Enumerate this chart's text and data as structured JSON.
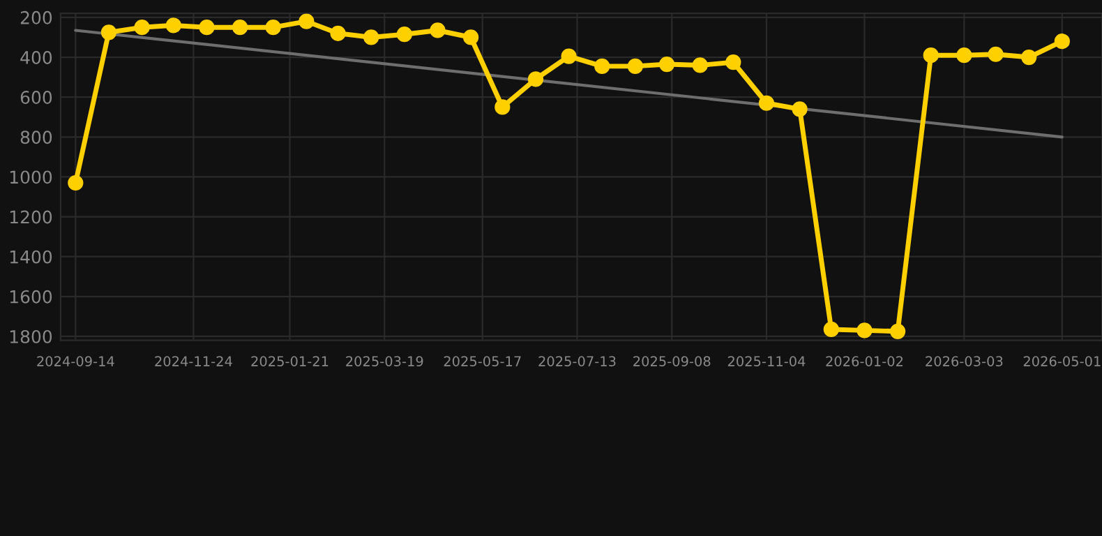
{
  "chart_data": {
    "type": "line",
    "x": [
      "2024-09-14",
      "2024-10-04",
      "2024-10-24",
      "2024-11-12",
      "2024-12-02",
      "2024-12-22",
      "2025-01-11",
      "2025-01-31",
      "2025-02-19",
      "2025-03-11",
      "2025-03-31",
      "2025-04-20",
      "2025-05-10",
      "2025-05-29",
      "2025-06-18",
      "2025-07-08",
      "2025-07-28",
      "2025-08-17",
      "2025-09-05",
      "2025-09-25",
      "2025-10-15",
      "2025-11-04",
      "2025-11-24",
      "2025-12-13",
      "2026-01-02",
      "2026-01-22",
      "2026-02-11",
      "2026-03-03",
      "2026-03-22",
      "2026-04-11",
      "2026-05-01"
    ],
    "series": [
      {
        "color": "#ffd000",
        "marker": "circle",
        "values": [
          1030,
          275,
          250,
          240,
          250,
          250,
          250,
          220,
          280,
          300,
          285,
          265,
          300,
          650,
          510,
          395,
          445,
          445,
          435,
          440,
          425,
          630,
          660,
          1765,
          1770,
          1775,
          390,
          390,
          385,
          400,
          320
        ]
      },
      {
        "type": "line",
        "color": "#6e6e6e",
        "marker": "none",
        "x": [
          "2024-09-14",
          "2026-05-01"
        ],
        "values": [
          265,
          800
        ]
      }
    ],
    "xlim": [
      "2024-09-05",
      "2026-05-25"
    ],
    "ylim": [
      1820,
      180
    ],
    "xticks": [
      "2024-09-14",
      "2024-11-24",
      "2025-01-21",
      "2025-03-19",
      "2025-05-17",
      "2025-07-13",
      "2025-09-08",
      "2025-11-04",
      "2026-01-02",
      "2026-03-03",
      "2026-05-01"
    ],
    "yticks": [
      200,
      400,
      600,
      800,
      1000,
      1200,
      1400,
      1600,
      1800
    ],
    "grid": true,
    "line_style": "solid"
  }
}
